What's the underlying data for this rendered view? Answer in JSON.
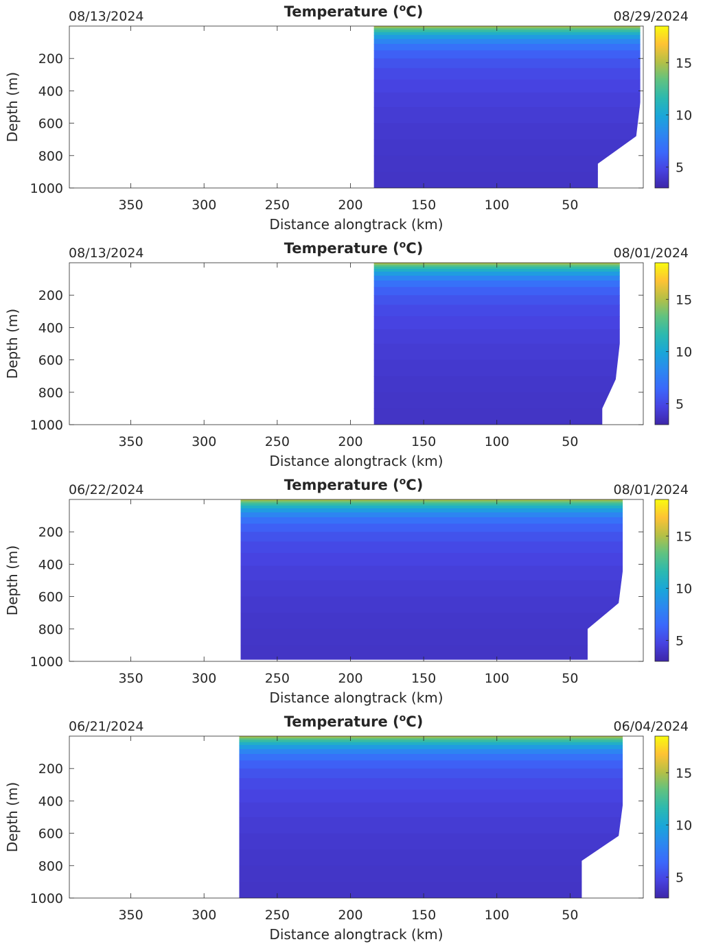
{
  "figure": {
    "colors": {
      "colormap": [
        "#3e26a8",
        "#4743e1",
        "#3b68fb",
        "#2c87f0",
        "#1aa6d9",
        "#2cb9b0",
        "#5fc281",
        "#b5c046",
        "#fec234",
        "#f9fb0e"
      ],
      "axis": "#262626",
      "background": "#ffffff"
    }
  },
  "chart_data": [
    {
      "type": "heatmap",
      "title": "Temperature (°C)",
      "title_base": "Temperature (",
      "title_sup": "o",
      "title_tail": "C)",
      "date_left": "08/13/2024",
      "date_right": "08/29/2024",
      "xlabel": "Distance alongtrack (km)",
      "ylabel": "Depth (m)",
      "xlim": [
        392,
        0
      ],
      "ylim": [
        0,
        1000
      ],
      "xticks": [
        350,
        300,
        250,
        200,
        150,
        100,
        50
      ],
      "yticks": [
        200,
        400,
        600,
        800,
        1000
      ],
      "colorbar": {
        "range": [
          3,
          18.5
        ],
        "ticks": [
          5,
          10,
          15
        ]
      },
      "coverage": {
        "x_start_km": 184,
        "x_end_km": 2,
        "deep_edge_km": 31,
        "deep_edge_depth_m": 850,
        "profile_bottom_m": 1000
      }
    },
    {
      "type": "heatmap",
      "title": "Temperature (°C)",
      "title_base": "Temperature (",
      "title_sup": "o",
      "title_tail": "C)",
      "date_left": "08/13/2024",
      "date_right": "08/01/2024",
      "xlabel": "Distance alongtrack (km)",
      "ylabel": "Depth (m)",
      "xlim": [
        392,
        0
      ],
      "ylim": [
        0,
        1000
      ],
      "xticks": [
        350,
        300,
        250,
        200,
        150,
        100,
        50
      ],
      "yticks": [
        200,
        400,
        600,
        800,
        1000
      ],
      "colorbar": {
        "range": [
          3,
          18.5
        ],
        "ticks": [
          5,
          10,
          15
        ]
      },
      "coverage": {
        "x_start_km": 184,
        "x_end_km": 16,
        "deep_edge_km": 28,
        "deep_edge_depth_m": 900,
        "profile_bottom_m": 1000
      }
    },
    {
      "type": "heatmap",
      "title": "Temperature (°C)",
      "title_base": "Temperature (",
      "title_sup": "o",
      "title_tail": "C)",
      "date_left": "06/22/2024",
      "date_right": "08/01/2024",
      "xlabel": "Distance alongtrack (km)",
      "ylabel": "Depth (m)",
      "xlim": [
        392,
        0
      ],
      "ylim": [
        0,
        1000
      ],
      "xticks": [
        350,
        300,
        250,
        200,
        150,
        100,
        50
      ],
      "yticks": [
        200,
        400,
        600,
        800,
        1000
      ],
      "colorbar": {
        "range": [
          3,
          18.5
        ],
        "ticks": [
          5,
          10,
          15
        ]
      },
      "coverage": {
        "x_start_km": 275,
        "x_end_km": 14,
        "deep_edge_km": 38,
        "deep_edge_depth_m": 800,
        "profile_bottom_m": 990
      }
    },
    {
      "type": "heatmap",
      "title": "Temperature (°C)",
      "title_base": "Temperature (",
      "title_sup": "o",
      "title_tail": "C)",
      "date_left": "06/21/2024",
      "date_right": "06/04/2024",
      "xlabel": "Distance alongtrack (km)",
      "ylabel": "Depth (m)",
      "xlim": [
        392,
        0
      ],
      "ylim": [
        0,
        1000
      ],
      "xticks": [
        350,
        300,
        250,
        200,
        150,
        100,
        50
      ],
      "yticks": [
        200,
        400,
        600,
        800,
        1000
      ],
      "colorbar": {
        "range": [
          3,
          18.5
        ],
        "ticks": [
          5,
          10,
          15
        ]
      },
      "coverage": {
        "x_start_km": 276,
        "x_end_km": 14,
        "deep_edge_km": 42,
        "deep_edge_depth_m": 770,
        "profile_bottom_m": 1000
      }
    }
  ]
}
